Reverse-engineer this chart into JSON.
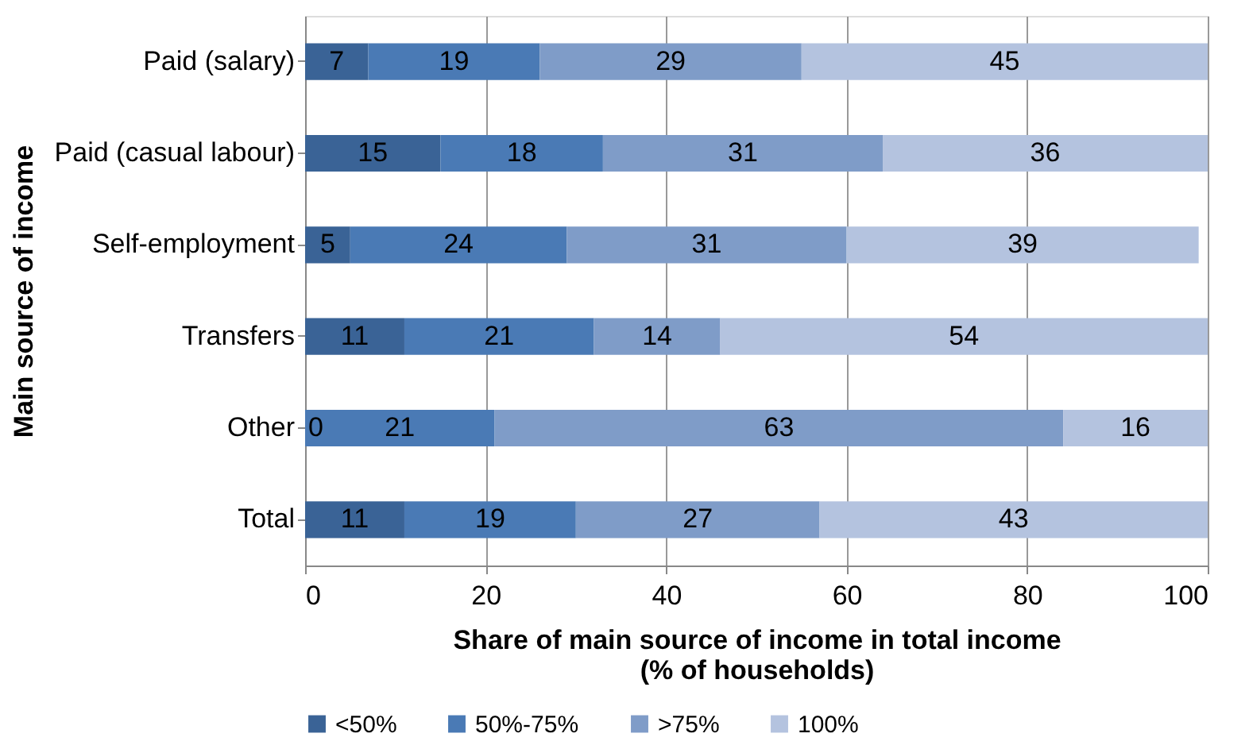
{
  "chart_data": {
    "type": "bar",
    "orientation": "horizontal",
    "stacked": true,
    "xlabel": "Share of main source of income in total income\n(% of households)",
    "ylabel": "Main source of income",
    "categories": [
      "Paid (salary)",
      "Paid (casual labour)",
      "Self-employment",
      "Transfers",
      "Other",
      "Total"
    ],
    "series": [
      {
        "name": "<50%",
        "color": "#3a6396",
        "values": [
          7,
          15,
          5,
          11,
          0,
          11
        ],
        "value_labels": [
          "7",
          "15",
          "5",
          "11",
          null,
          "11"
        ]
      },
      {
        "name": "50%-75%",
        "color": "#4a7ab5",
        "values": [
          19,
          18,
          24,
          21,
          21,
          19
        ],
        "value_labels": [
          "19",
          "18",
          "24",
          "21",
          "21",
          "19"
        ]
      },
      {
        "name": ">75%",
        "color": "#7f9cc8",
        "values": [
          29,
          31,
          31,
          14,
          63,
          27
        ],
        "value_labels": [
          "29",
          "31",
          "31",
          "14",
          "63",
          "27"
        ]
      },
      {
        "name": "100%",
        "color": "#b4c3df",
        "values": [
          45,
          36,
          39,
          54,
          16,
          43
        ],
        "value_labels": [
          "45",
          "36",
          "39",
          "54",
          "16",
          "43"
        ]
      }
    ],
    "annotations": [
      {
        "text": "0",
        "x": 0,
        "y": "Other"
      }
    ],
    "xlim": [
      0,
      100
    ],
    "xticks": [
      0,
      20,
      40,
      60,
      80,
      100
    ],
    "grid": "x",
    "legend": "bottom"
  }
}
